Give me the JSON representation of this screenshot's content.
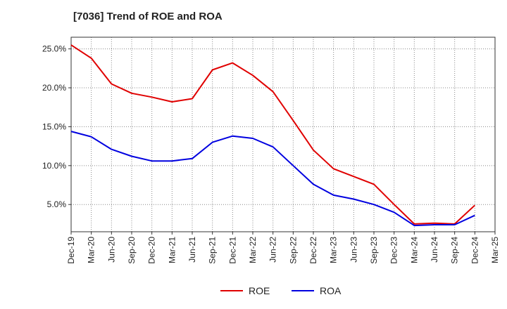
{
  "chart_data": {
    "type": "line",
    "title": "[7036]  Trend of ROE and ROA",
    "x": [
      "Dec-19",
      "Mar-20",
      "Jun-20",
      "Sep-20",
      "Dec-20",
      "Mar-21",
      "Jun-21",
      "Sep-21",
      "Dec-21",
      "Mar-22",
      "Jun-22",
      "Sep-22",
      "Dec-22",
      "Mar-23",
      "Jun-23",
      "Sep-23",
      "Dec-23",
      "Mar-24",
      "Jun-24",
      "Sep-24",
      "Dec-24"
    ],
    "x_ticks": [
      "Dec-19",
      "Mar-20",
      "Jun-20",
      "Sep-20",
      "Dec-20",
      "Mar-21",
      "Jun-21",
      "Sep-21",
      "Dec-21",
      "Mar-22",
      "Jun-22",
      "Sep-22",
      "Dec-22",
      "Mar-23",
      "Jun-23",
      "Sep-23",
      "Dec-23",
      "Mar-24",
      "Jun-24",
      "Sep-24",
      "Dec-24",
      "Mar-25"
    ],
    "y_ticks": [
      5.0,
      10.0,
      15.0,
      20.0,
      25.0
    ],
    "y_tick_labels": [
      "5.0%",
      "10.0%",
      "15.0%",
      "20.0%",
      "25.0%"
    ],
    "ylim": [
      1.5,
      26.5
    ],
    "series": [
      {
        "name": "ROE",
        "color": "#e00000",
        "values": [
          25.5,
          23.8,
          20.5,
          19.3,
          18.8,
          18.2,
          18.6,
          22.3,
          23.2,
          21.6,
          19.5,
          15.8,
          12.0,
          9.6,
          8.6,
          7.6,
          5.0,
          2.5,
          2.6,
          2.5,
          4.9
        ]
      },
      {
        "name": "ROA",
        "color": "#0000e0",
        "values": [
          14.4,
          13.7,
          12.1,
          11.2,
          10.6,
          10.6,
          10.9,
          13.0,
          13.8,
          13.5,
          12.4,
          10.0,
          7.6,
          6.2,
          5.7,
          5.0,
          4.0,
          2.3,
          2.4,
          2.4,
          3.6
        ]
      }
    ],
    "legend": "bottom",
    "grid": true
  }
}
